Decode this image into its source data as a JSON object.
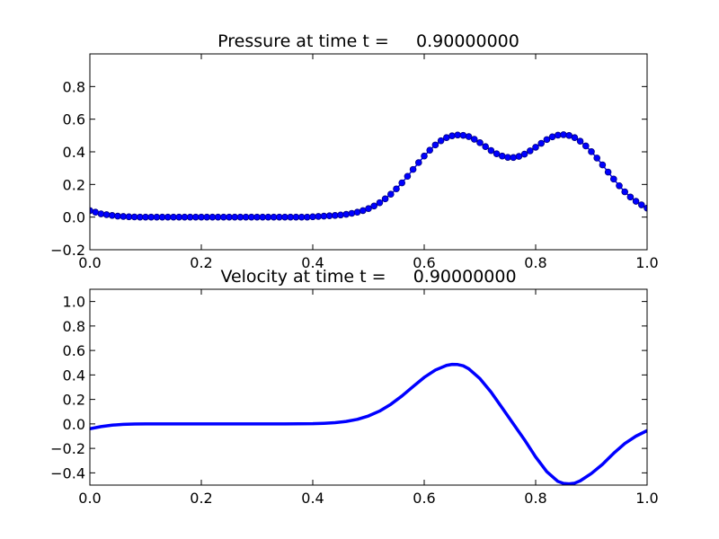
{
  "colors": {
    "line": "#0000ff",
    "marker_edge": "#000080",
    "background": "#ffffff",
    "axes": "#000000"
  },
  "chart_data": [
    {
      "type": "scatter",
      "title": "Pressure at time t =     0.90000000",
      "xlabel": "",
      "ylabel": "",
      "xlim": [
        0.0,
        1.0
      ],
      "ylim": [
        -0.2,
        1.0
      ],
      "x_ticks": [
        "0.0",
        "0.2",
        "0.4",
        "0.6",
        "0.8",
        "1.0"
      ],
      "y_ticks": [
        "−0.2",
        "0.0",
        "0.2",
        "0.4",
        "0.6",
        "0.8"
      ],
      "grid": false,
      "legend": "none",
      "series": [
        {
          "style": "line-with-circle-markers",
          "x": [
            0.0,
            0.01,
            0.02,
            0.03,
            0.04,
            0.05,
            0.06,
            0.07,
            0.08,
            0.09,
            0.1,
            0.11,
            0.12,
            0.13,
            0.14,
            0.15,
            0.16,
            0.17,
            0.18,
            0.19,
            0.2,
            0.21,
            0.22,
            0.23,
            0.24,
            0.25,
            0.26,
            0.27,
            0.28,
            0.29,
            0.3,
            0.31,
            0.32,
            0.33,
            0.34,
            0.35,
            0.36,
            0.37,
            0.38,
            0.39,
            0.4,
            0.41,
            0.42,
            0.43,
            0.44,
            0.45,
            0.46,
            0.47,
            0.48,
            0.49,
            0.5,
            0.51,
            0.52,
            0.53,
            0.54,
            0.55,
            0.56,
            0.57,
            0.58,
            0.59,
            0.6,
            0.61,
            0.62,
            0.63,
            0.64,
            0.65,
            0.66,
            0.67,
            0.68,
            0.69,
            0.7,
            0.71,
            0.72,
            0.73,
            0.74,
            0.75,
            0.76,
            0.77,
            0.78,
            0.79,
            0.8,
            0.81,
            0.82,
            0.83,
            0.84,
            0.85,
            0.86,
            0.87,
            0.88,
            0.89,
            0.9,
            0.91,
            0.92,
            0.93,
            0.94,
            0.95,
            0.96,
            0.97,
            0.98,
            0.99,
            1.0
          ],
          "y": [
            0.04,
            0.03,
            0.02,
            0.015,
            0.01,
            0.006,
            0.004,
            0.002,
            0.001,
            0.0,
            0.0,
            0.0,
            0.0,
            0.0,
            0.0,
            0.0,
            0.0,
            0.0,
            0.0,
            0.0,
            0.0,
            0.0,
            0.0,
            0.0,
            0.0,
            0.0,
            0.0,
            0.0,
            0.0,
            0.0,
            0.0,
            0.0,
            0.0,
            0.0,
            0.0,
            0.0,
            0.0,
            0.0,
            0.0,
            0.0,
            0.002,
            0.004,
            0.006,
            0.008,
            0.01,
            0.013,
            0.017,
            0.023,
            0.03,
            0.04,
            0.052,
            0.068,
            0.088,
            0.112,
            0.14,
            0.173,
            0.21,
            0.25,
            0.292,
            0.334,
            0.374,
            0.41,
            0.442,
            0.468,
            0.487,
            0.498,
            0.503,
            0.501,
            0.493,
            0.477,
            0.456,
            0.432,
            0.408,
            0.388,
            0.374,
            0.366,
            0.365,
            0.372,
            0.386,
            0.406,
            0.428,
            0.452,
            0.475,
            0.492,
            0.502,
            0.505,
            0.5,
            0.487,
            0.465,
            0.436,
            0.401,
            0.362,
            0.32,
            0.276,
            0.233,
            0.192,
            0.155,
            0.123,
            0.097,
            0.075,
            0.055
          ]
        }
      ]
    },
    {
      "type": "line",
      "title": "Velocity at time t =     0.90000000",
      "xlabel": "",
      "ylabel": "",
      "xlim": [
        0.0,
        1.0
      ],
      "ylim": [
        -0.5,
        1.1
      ],
      "x_ticks": [
        "0.0",
        "0.2",
        "0.4",
        "0.6",
        "0.8",
        "1.0"
      ],
      "y_ticks": [
        "−0.4",
        "−0.2",
        "0.0",
        "0.2",
        "0.4",
        "0.6",
        "0.8",
        "1.0"
      ],
      "grid": false,
      "legend": "none",
      "series": [
        {
          "style": "thick-line",
          "x": [
            0.0,
            0.02,
            0.04,
            0.06,
            0.08,
            0.1,
            0.15,
            0.2,
            0.25,
            0.3,
            0.35,
            0.4,
            0.42,
            0.44,
            0.46,
            0.48,
            0.5,
            0.52,
            0.54,
            0.56,
            0.58,
            0.6,
            0.62,
            0.64,
            0.65,
            0.66,
            0.67,
            0.68,
            0.7,
            0.72,
            0.74,
            0.76,
            0.78,
            0.8,
            0.82,
            0.84,
            0.85,
            0.86,
            0.87,
            0.88,
            0.9,
            0.92,
            0.94,
            0.96,
            0.98,
            1.0
          ],
          "y": [
            -0.04,
            -0.022,
            -0.01,
            -0.004,
            -0.001,
            0.0,
            0.0,
            0.0,
            0.0,
            0.0,
            0.0,
            0.002,
            0.005,
            0.01,
            0.02,
            0.037,
            0.065,
            0.105,
            0.16,
            0.228,
            0.305,
            0.38,
            0.44,
            0.478,
            0.486,
            0.485,
            0.475,
            0.45,
            0.37,
            0.26,
            0.13,
            0.0,
            -0.13,
            -0.27,
            -0.39,
            -0.47,
            -0.486,
            -0.49,
            -0.484,
            -0.465,
            -0.405,
            -0.33,
            -0.24,
            -0.16,
            -0.1,
            -0.055
          ]
        }
      ]
    }
  ]
}
